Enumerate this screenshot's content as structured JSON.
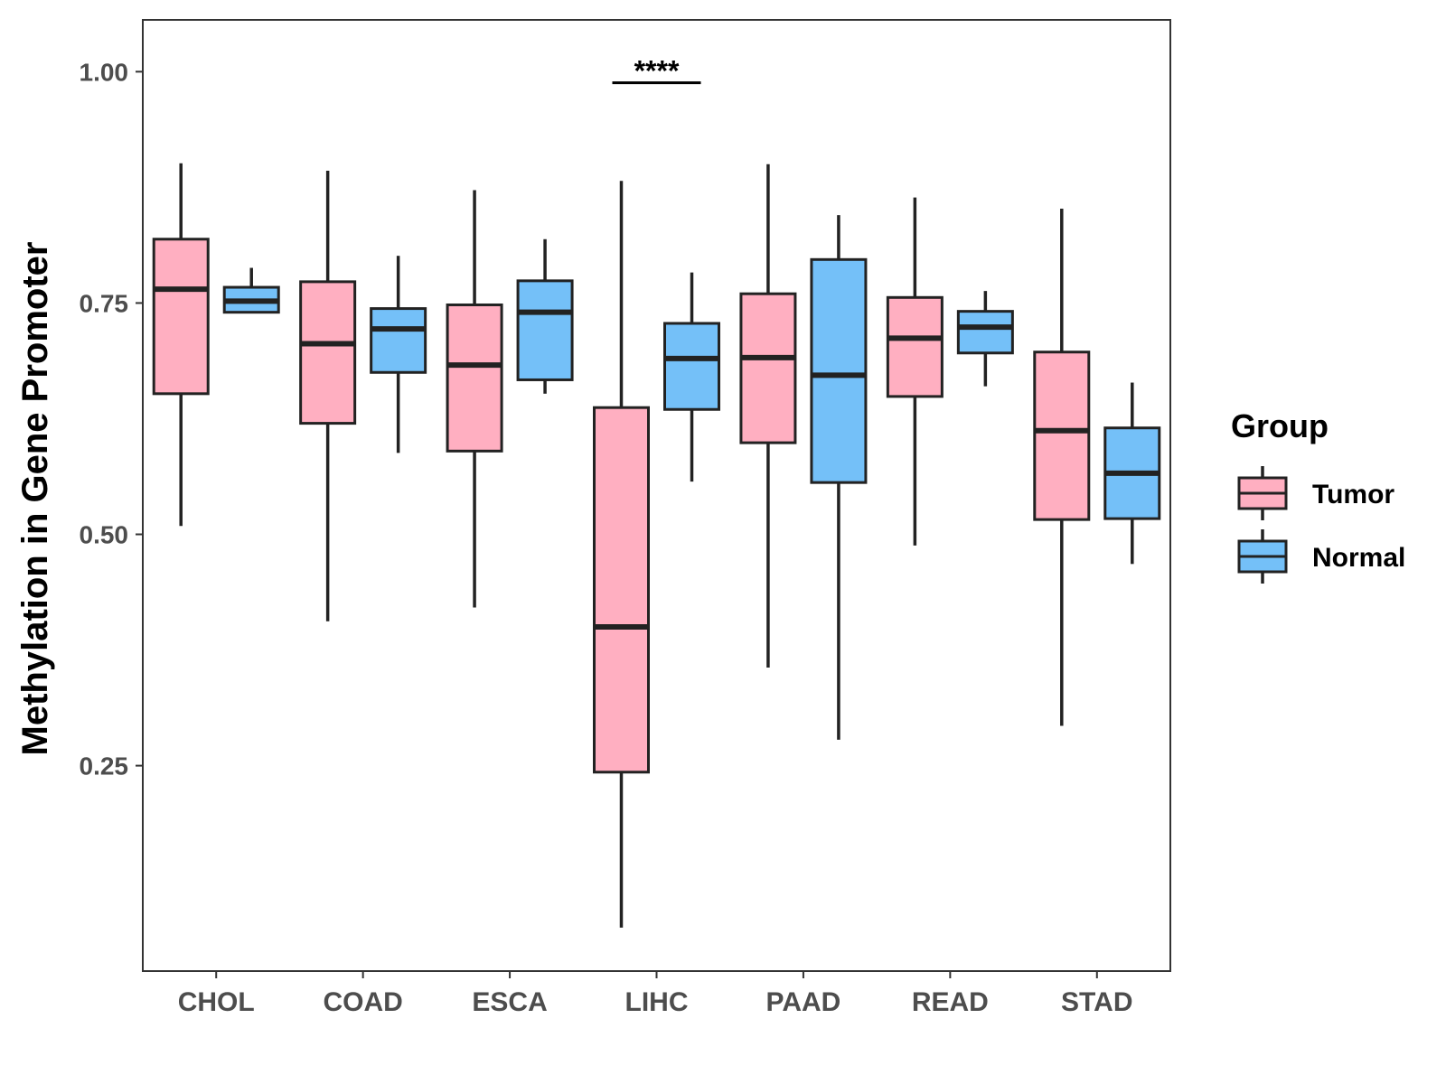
{
  "chart_data": {
    "type": "boxplot",
    "title": "",
    "xlabel": "",
    "ylabel": "Methylation in Gene Promoter",
    "ylim": [
      0.028,
      1.056
    ],
    "yticks": [
      "0.25",
      "0.50",
      "0.75",
      "1.00"
    ],
    "categories": [
      "CHOL",
      "COAD",
      "ESCA",
      "LIHC",
      "PAAD",
      "READ",
      "STAD"
    ],
    "legend": {
      "title": "Group",
      "position": "right",
      "entries": [
        {
          "name": "Tumor",
          "color": "#FFAFC1"
        },
        {
          "name": "Normal",
          "color": "#74C0F8"
        }
      ]
    },
    "series": [
      {
        "name": "Tumor",
        "color": "#FFAFC1",
        "boxes": [
          {
            "category": "CHOL",
            "min": 0.509,
            "q1": 0.652,
            "median": 0.765,
            "q3": 0.819,
            "max": 0.901
          },
          {
            "category": "COAD",
            "min": 0.406,
            "q1": 0.62,
            "median": 0.706,
            "q3": 0.773,
            "max": 0.893
          },
          {
            "category": "ESCA",
            "min": 0.421,
            "q1": 0.59,
            "median": 0.683,
            "q3": 0.748,
            "max": 0.872
          },
          {
            "category": "LIHC",
            "min": 0.075,
            "q1": 0.243,
            "median": 0.4,
            "q3": 0.637,
            "max": 0.882
          },
          {
            "category": "PAAD",
            "min": 0.356,
            "q1": 0.599,
            "median": 0.691,
            "q3": 0.76,
            "max": 0.9
          },
          {
            "category": "READ",
            "min": 0.488,
            "q1": 0.649,
            "median": 0.712,
            "q3": 0.756,
            "max": 0.864
          },
          {
            "category": "STAD",
            "min": 0.293,
            "q1": 0.516,
            "median": 0.612,
            "q3": 0.697,
            "max": 0.852
          }
        ]
      },
      {
        "name": "Normal",
        "color": "#74C0F8",
        "boxes": [
          {
            "category": "CHOL",
            "min": 0.74,
            "q1": 0.74,
            "median": 0.752,
            "q3": 0.767,
            "max": 0.788
          },
          {
            "category": "COAD",
            "min": 0.588,
            "q1": 0.675,
            "median": 0.722,
            "q3": 0.744,
            "max": 0.801
          },
          {
            "category": "ESCA",
            "min": 0.652,
            "q1": 0.667,
            "median": 0.74,
            "q3": 0.774,
            "max": 0.819
          },
          {
            "category": "LIHC",
            "min": 0.557,
            "q1": 0.635,
            "median": 0.69,
            "q3": 0.728,
            "max": 0.783
          },
          {
            "category": "PAAD",
            "min": 0.278,
            "q1": 0.556,
            "median": 0.672,
            "q3": 0.797,
            "max": 0.845
          },
          {
            "category": "READ",
            "min": 0.66,
            "q1": 0.696,
            "median": 0.724,
            "q3": 0.741,
            "max": 0.763
          },
          {
            "category": "STAD",
            "min": 0.468,
            "q1": 0.517,
            "median": 0.566,
            "q3": 0.615,
            "max": 0.664
          }
        ]
      }
    ],
    "annotations": [
      {
        "text": "****",
        "category": "LIHC",
        "y": 0.988
      }
    ]
  }
}
